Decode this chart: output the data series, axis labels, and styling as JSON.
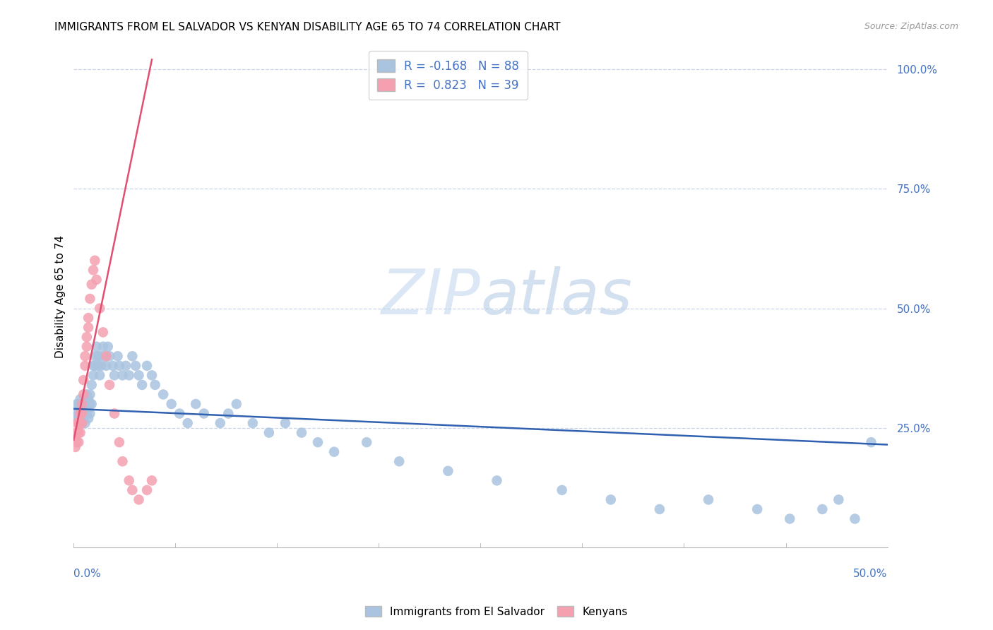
{
  "title": "IMMIGRANTS FROM EL SALVADOR VS KENYAN DISABILITY AGE 65 TO 74 CORRELATION CHART",
  "source": "Source: ZipAtlas.com",
  "ylabel": "Disability Age 65 to 74",
  "right_yticks": [
    "100.0%",
    "75.0%",
    "50.0%",
    "25.0%"
  ],
  "right_ytick_vals": [
    1.0,
    0.75,
    0.5,
    0.25
  ],
  "xlim": [
    0.0,
    0.5
  ],
  "ylim": [
    0.0,
    1.05
  ],
  "watermark_zip": "ZIP",
  "watermark_atlas": "atlas",
  "legend_blue_label": "R = -0.168   N = 88",
  "legend_pink_label": "R =  0.823   N = 39",
  "legend_bottom_blue": "Immigrants from El Salvador",
  "legend_bottom_pink": "Kenyans",
  "blue_color": "#aac4e0",
  "pink_color": "#f4a0b0",
  "blue_line_color": "#3060b0",
  "pink_line_color": "#e05070",
  "grid_color": "#c8d4e8",
  "background_color": "#ffffff",
  "blue_line_x": [
    0.0,
    0.5
  ],
  "blue_line_y": [
    0.29,
    0.215
  ],
  "pink_line_x": [
    0.0,
    0.048
  ],
  "pink_line_y": [
    0.225,
    1.02
  ],
  "blue_x": [
    0.001,
    0.002,
    0.002,
    0.003,
    0.003,
    0.003,
    0.004,
    0.004,
    0.004,
    0.005,
    0.005,
    0.005,
    0.005,
    0.006,
    0.006,
    0.006,
    0.007,
    0.007,
    0.007,
    0.008,
    0.008,
    0.008,
    0.009,
    0.009,
    0.009,
    0.01,
    0.01,
    0.01,
    0.011,
    0.011,
    0.012,
    0.012,
    0.013,
    0.013,
    0.014,
    0.015,
    0.015,
    0.016,
    0.016,
    0.017,
    0.018,
    0.019,
    0.02,
    0.021,
    0.022,
    0.024,
    0.025,
    0.027,
    0.028,
    0.03,
    0.032,
    0.034,
    0.036,
    0.038,
    0.04,
    0.042,
    0.045,
    0.048,
    0.05,
    0.055,
    0.06,
    0.065,
    0.07,
    0.075,
    0.08,
    0.09,
    0.095,
    0.1,
    0.11,
    0.12,
    0.13,
    0.14,
    0.15,
    0.16,
    0.18,
    0.2,
    0.23,
    0.26,
    0.3,
    0.33,
    0.36,
    0.39,
    0.42,
    0.44,
    0.46,
    0.47,
    0.48,
    0.49
  ],
  "blue_y": [
    0.28,
    0.27,
    0.3,
    0.26,
    0.28,
    0.3,
    0.27,
    0.29,
    0.31,
    0.26,
    0.28,
    0.3,
    0.26,
    0.27,
    0.29,
    0.28,
    0.26,
    0.28,
    0.3,
    0.28,
    0.3,
    0.32,
    0.29,
    0.31,
    0.27,
    0.28,
    0.3,
    0.32,
    0.3,
    0.34,
    0.36,
    0.38,
    0.4,
    0.38,
    0.42,
    0.38,
    0.4,
    0.36,
    0.4,
    0.38,
    0.42,
    0.4,
    0.38,
    0.42,
    0.4,
    0.38,
    0.36,
    0.4,
    0.38,
    0.36,
    0.38,
    0.36,
    0.4,
    0.38,
    0.36,
    0.34,
    0.38,
    0.36,
    0.34,
    0.32,
    0.3,
    0.28,
    0.26,
    0.3,
    0.28,
    0.26,
    0.28,
    0.3,
    0.26,
    0.24,
    0.26,
    0.24,
    0.22,
    0.2,
    0.22,
    0.18,
    0.16,
    0.14,
    0.12,
    0.1,
    0.08,
    0.1,
    0.08,
    0.06,
    0.08,
    0.1,
    0.06,
    0.22
  ],
  "pink_x": [
    0.001,
    0.001,
    0.002,
    0.002,
    0.002,
    0.003,
    0.003,
    0.003,
    0.004,
    0.004,
    0.004,
    0.005,
    0.005,
    0.005,
    0.006,
    0.006,
    0.007,
    0.007,
    0.008,
    0.008,
    0.009,
    0.009,
    0.01,
    0.011,
    0.012,
    0.013,
    0.014,
    0.016,
    0.018,
    0.02,
    0.022,
    0.025,
    0.028,
    0.03,
    0.034,
    0.036,
    0.04,
    0.045,
    0.048
  ],
  "pink_y": [
    0.21,
    0.24,
    0.22,
    0.24,
    0.26,
    0.22,
    0.24,
    0.26,
    0.24,
    0.26,
    0.28,
    0.26,
    0.28,
    0.3,
    0.32,
    0.35,
    0.38,
    0.4,
    0.42,
    0.44,
    0.46,
    0.48,
    0.52,
    0.55,
    0.58,
    0.6,
    0.56,
    0.5,
    0.45,
    0.4,
    0.34,
    0.28,
    0.22,
    0.18,
    0.14,
    0.12,
    0.1,
    0.12,
    0.14
  ]
}
